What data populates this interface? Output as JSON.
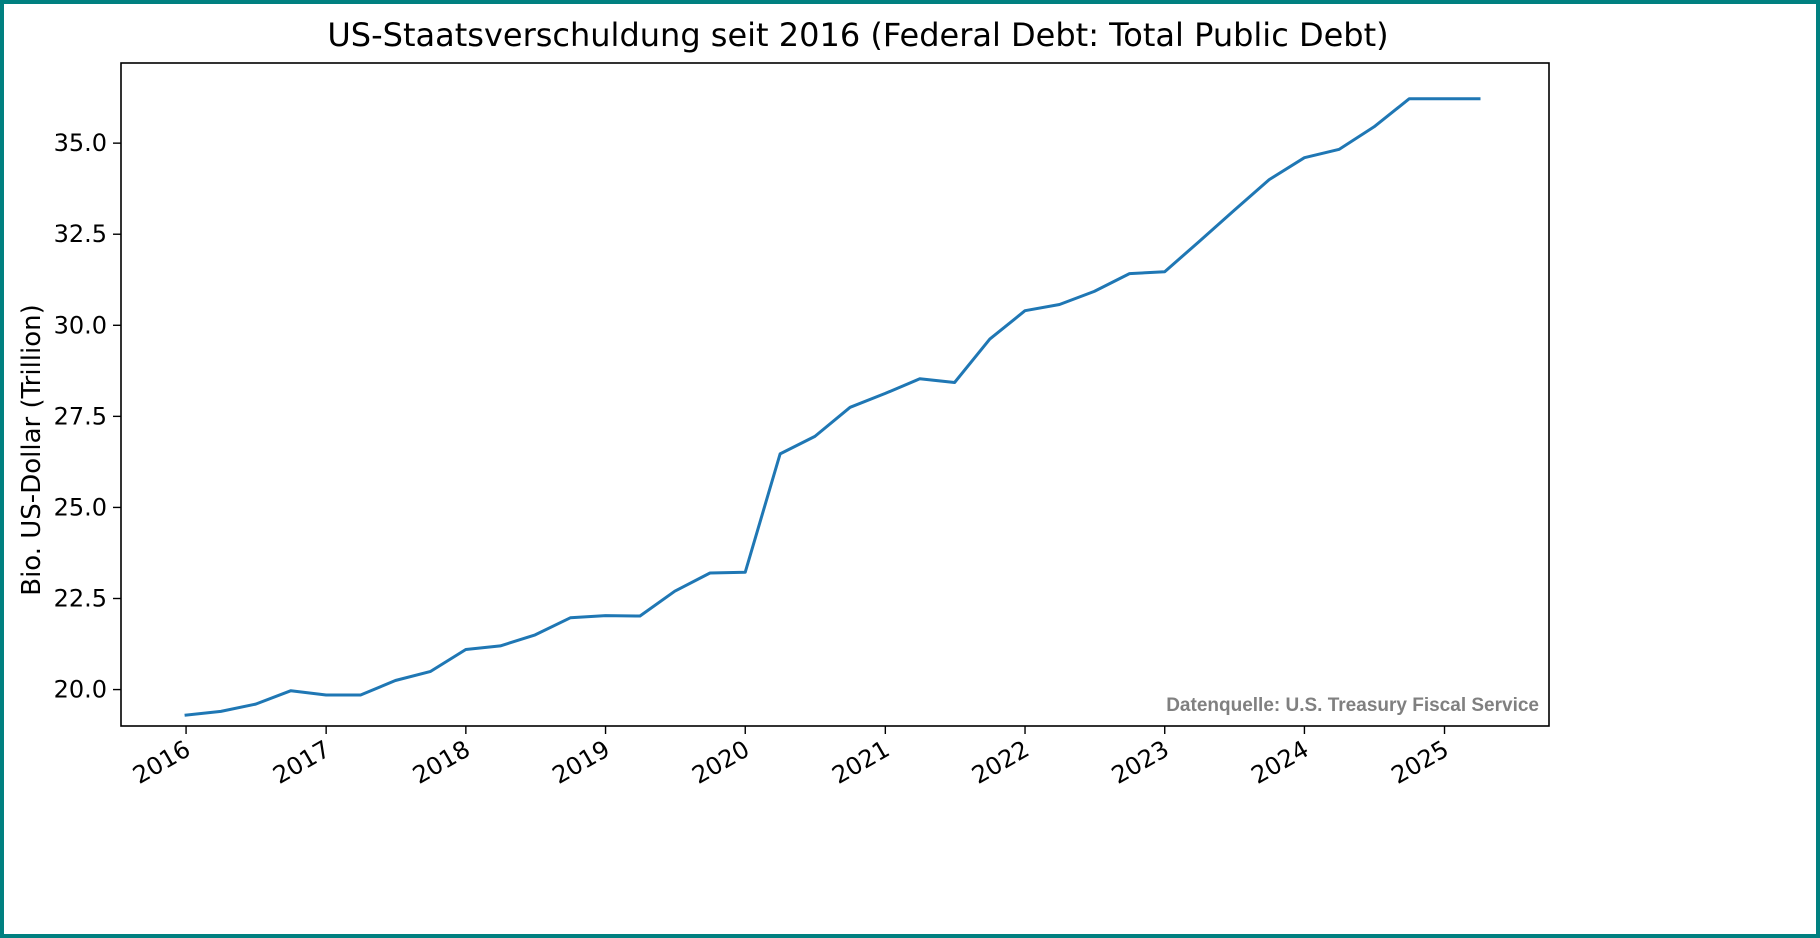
{
  "chart_data": {
    "type": "line",
    "title": "US-Staatsverschuldung seit 2016 (Federal Debt: Total Public Debt)",
    "xlabel": "",
    "ylabel": "Bio. US-Dollar (Trillion)",
    "source_note": "Datenquelle: U.S. Treasury Fiscal Service",
    "xlim": [
      "2015-07-15",
      "2025-10-01"
    ],
    "ylim": [
      19.0,
      37.2
    ],
    "x_ticks": [
      "2016",
      "2017",
      "2018",
      "2019",
      "2020",
      "2021",
      "2022",
      "2023",
      "2024",
      "2025"
    ],
    "y_ticks": [
      "20.0",
      "22.5",
      "25.0",
      "27.5",
      "30.0",
      "32.5",
      "35.0"
    ],
    "grid": false,
    "legend": "none",
    "series": [
      {
        "color": "#1f77b4",
        "x": [
          "2016-01-01",
          "2016-04-01",
          "2016-07-01",
          "2016-10-01",
          "2017-01-01",
          "2017-04-01",
          "2017-07-01",
          "2017-10-01",
          "2018-01-01",
          "2018-04-01",
          "2018-07-01",
          "2018-10-01",
          "2019-01-01",
          "2019-04-01",
          "2019-07-01",
          "2019-10-01",
          "2020-01-01",
          "2020-04-01",
          "2020-07-01",
          "2020-10-01",
          "2021-01-01",
          "2021-04-01",
          "2021-07-01",
          "2021-10-01",
          "2022-01-01",
          "2022-04-01",
          "2022-07-01",
          "2022-10-01",
          "2023-01-01",
          "2023-04-01",
          "2023-07-01",
          "2023-10-01",
          "2024-01-01",
          "2024-04-01",
          "2024-07-01",
          "2024-10-01",
          "2025-01-01",
          "2025-04-01"
        ],
        "y": [
          19.3,
          19.4,
          19.6,
          19.97,
          19.85,
          19.85,
          20.25,
          20.5,
          21.1,
          21.2,
          21.5,
          21.97,
          22.03,
          22.02,
          22.7,
          23.2,
          23.22,
          26.47,
          26.95,
          27.75,
          28.13,
          28.53,
          28.43,
          29.62,
          30.4,
          30.57,
          30.93,
          31.42,
          31.47,
          32.3,
          33.15,
          34.0,
          34.6,
          34.83,
          35.45,
          36.22,
          36.22,
          36.22
        ]
      }
    ]
  }
}
